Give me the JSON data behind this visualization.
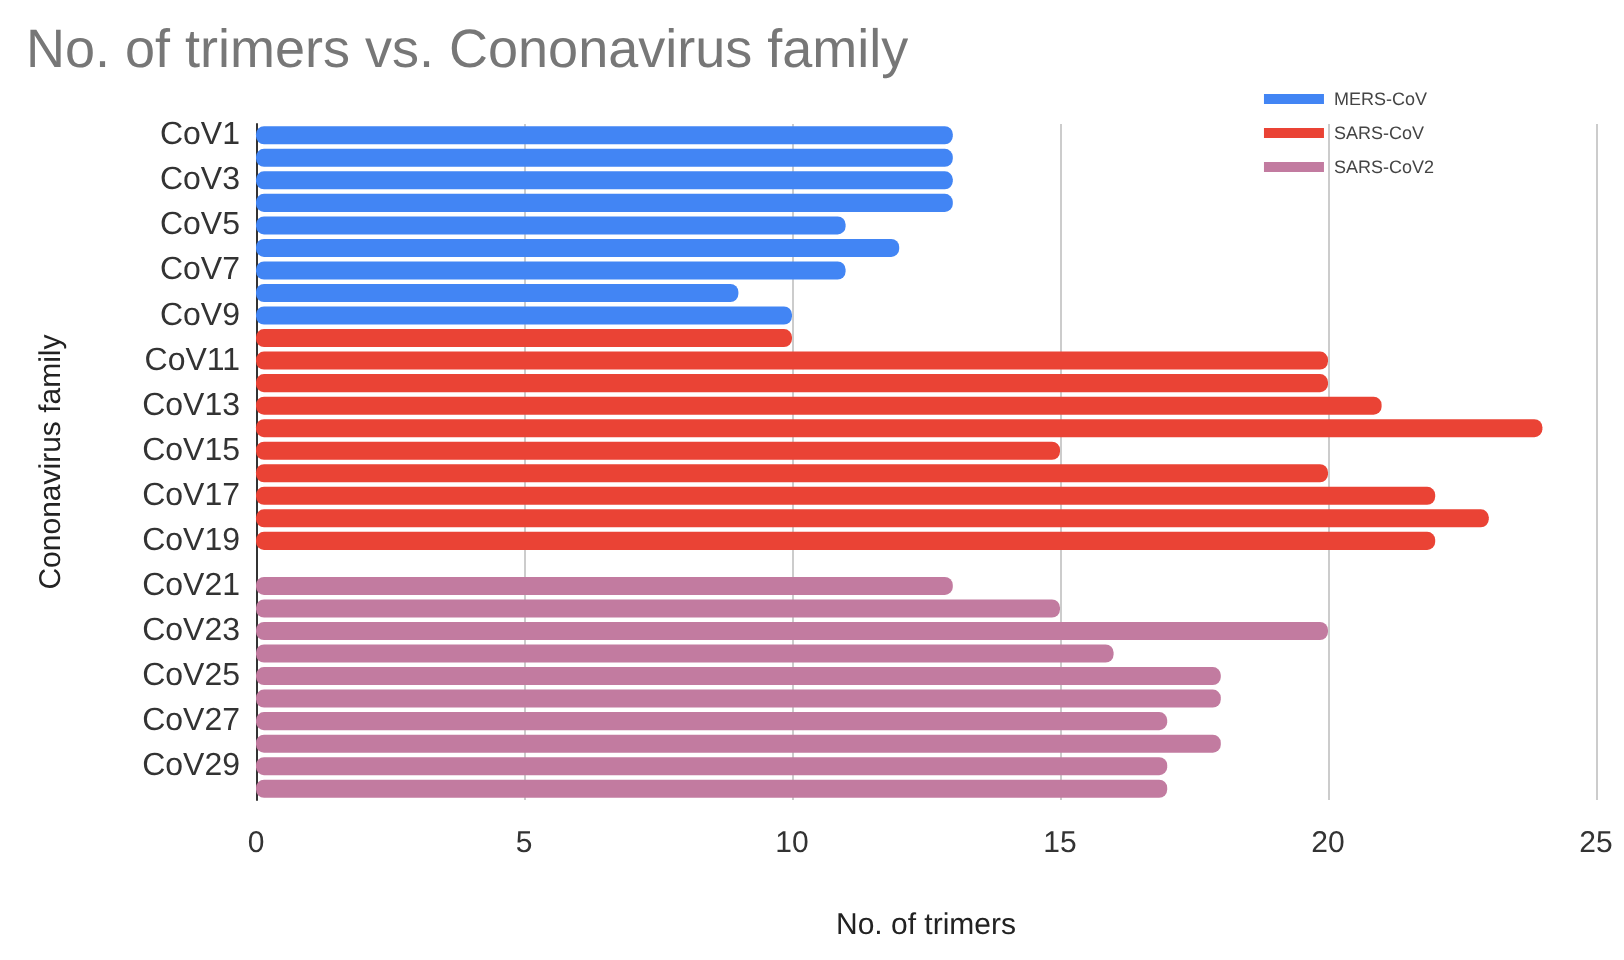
{
  "chart_data": {
    "type": "bar",
    "orientation": "horizontal",
    "title": "No. of trimers vs. Cononavirus family",
    "xlabel": "No. of trimers",
    "ylabel": "Cononavirus family",
    "categories": [
      "CoV1",
      null,
      "CoV3",
      null,
      "CoV5",
      null,
      "CoV7",
      null,
      "CoV9",
      null,
      "CoV11",
      null,
      "CoV13",
      null,
      "CoV15",
      null,
      "CoV17",
      null,
      "CoV19",
      null,
      "CoV21",
      null,
      "CoV23",
      null,
      "CoV25",
      null,
      "CoV27",
      null,
      "CoV29",
      null
    ],
    "series": [
      {
        "name": "MERS-CoV",
        "color": "#4285f4",
        "values": [
          13,
          13,
          13,
          13,
          11,
          12,
          11,
          9,
          10,
          null,
          null,
          null,
          null,
          null,
          null,
          null,
          null,
          null,
          null,
          null,
          null,
          null,
          null,
          null,
          null,
          null,
          null,
          null,
          null,
          null
        ]
      },
      {
        "name": "SARS-CoV",
        "color": "#ea4335",
        "values": [
          null,
          null,
          null,
          null,
          null,
          null,
          null,
          null,
          null,
          10,
          20,
          20,
          21,
          24,
          15,
          20,
          22,
          23,
          22,
          null,
          null,
          null,
          null,
          null,
          null,
          null,
          null,
          null,
          null,
          null
        ]
      },
      {
        "name": "SARS-CoV2",
        "color": "#c27ba0",
        "values": [
          null,
          null,
          null,
          null,
          null,
          null,
          null,
          null,
          null,
          null,
          null,
          null,
          null,
          null,
          null,
          null,
          null,
          null,
          null,
          null,
          13,
          15,
          20,
          16,
          18,
          18,
          17,
          18,
          17,
          17
        ]
      }
    ],
    "xlim": [
      0,
      25
    ],
    "xticks": [
      0,
      5,
      10,
      15,
      20,
      25
    ],
    "grid": "x",
    "legend": "top right"
  }
}
